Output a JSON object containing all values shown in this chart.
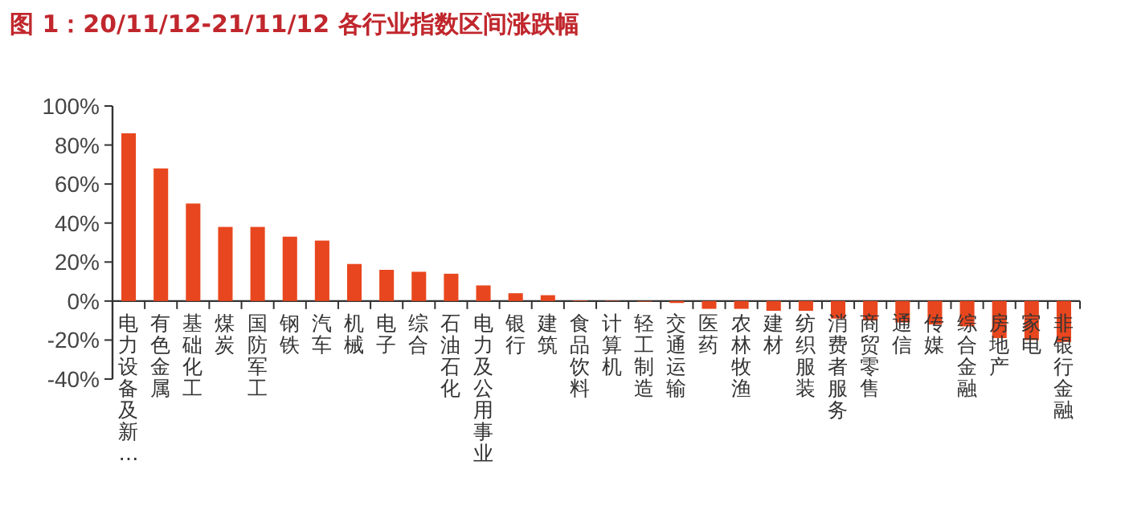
{
  "chart_data": {
    "type": "bar",
    "title": "图 1：20/11/12-21/11/12 各行业指数区间涨跌幅",
    "categories": [
      "电力设备及新…",
      "有色金属",
      "基础化工",
      "煤炭",
      "国防军工",
      "钢铁",
      "汽车",
      "机械",
      "电子",
      "综合",
      "石油石化",
      "电力及公用事业",
      "银行",
      "建筑",
      "食品饮料",
      "计算机",
      "轻工制造",
      "交通运输",
      "医药",
      "农林牧渔",
      "建材",
      "纺织服装",
      "消费者服务",
      "商贸零售",
      "通信",
      "传媒",
      "综合金融",
      "房地产",
      "家电",
      "非银行金融"
    ],
    "values": [
      86,
      68,
      50,
      38,
      38,
      33,
      31,
      19,
      16,
      15,
      14,
      8,
      4,
      3,
      0.3,
      0.2,
      -0.3,
      -1,
      -4,
      -4,
      -5,
      -5,
      -9,
      -10,
      -11,
      -12,
      -13,
      -19,
      -20,
      -21
    ],
    "color": "#e8461e",
    "ylim": [
      -40,
      100
    ],
    "yticks": [
      {
        "value": -40,
        "label": "-40%"
      },
      {
        "value": -20,
        "label": "-20%"
      },
      {
        "value": 0,
        "label": "0%"
      },
      {
        "value": 20,
        "label": "20%"
      },
      {
        "value": 40,
        "label": "40%"
      },
      {
        "value": 60,
        "label": "60%"
      },
      {
        "value": 80,
        "label": "80%"
      },
      {
        "value": 100,
        "label": "100%"
      }
    ]
  }
}
